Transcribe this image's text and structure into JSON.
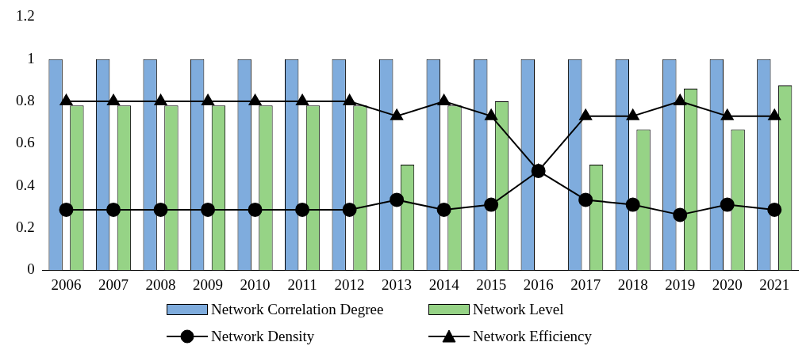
{
  "chart_data": {
    "type": "bar",
    "categories": [
      "2006",
      "2007",
      "2008",
      "2009",
      "2010",
      "2011",
      "2012",
      "2013",
      "2014",
      "2015",
      "2016",
      "2017",
      "2018",
      "2019",
      "2020",
      "2021"
    ],
    "series": [
      {
        "name": "Network Correlation Degree",
        "color": "#7facdd",
        "values": [
          1,
          1,
          1,
          1,
          1,
          1,
          1,
          1,
          1,
          1,
          1,
          1,
          1,
          1,
          1,
          1
        ]
      },
      {
        "name": "Network Level",
        "color": "#96d386",
        "values": [
          0.78,
          0.78,
          0.78,
          0.78,
          0.78,
          0.78,
          0.78,
          0.5,
          0.78,
          0.8,
          0,
          0.5,
          0.667,
          0.86,
          0.667,
          0.875
        ]
      },
      {
        "name": "Network Density",
        "type": "line",
        "color": "#000000",
        "marker": "circle",
        "values": [
          0.286,
          0.286,
          0.286,
          0.286,
          0.286,
          0.286,
          0.286,
          0.333,
          0.286,
          0.31,
          0.47,
          0.333,
          0.31,
          0.262,
          0.31,
          0.286
        ]
      },
      {
        "name": "Network Efficiency",
        "type": "line",
        "color": "#000000",
        "marker": "triangle",
        "values": [
          0.8,
          0.8,
          0.8,
          0.8,
          0.8,
          0.8,
          0.8,
          0.73,
          0.8,
          0.73,
          0.47,
          0.73,
          0.73,
          0.8,
          0.73,
          0.73
        ]
      }
    ],
    "ylim": [
      0,
      1.2
    ],
    "yticks": [
      0,
      0.2,
      0.4,
      0.6,
      0.8,
      1,
      1.2
    ],
    "grid": false,
    "legend": "bottom"
  }
}
